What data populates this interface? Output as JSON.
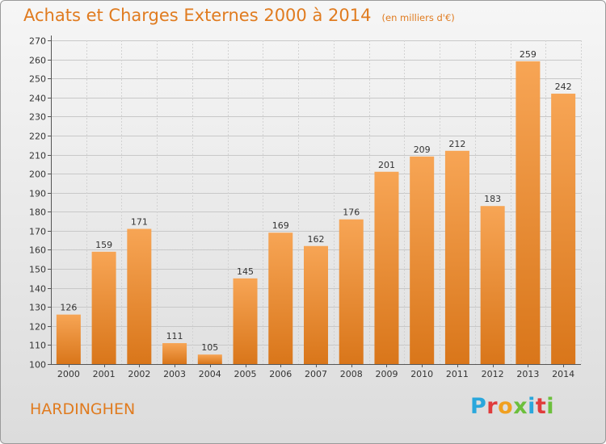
{
  "header": {
    "title": "Achats et Charges Externes 2000 à 2014",
    "subtitle": "(en milliers d'€)"
  },
  "footer": {
    "location": "HARDINGHEN",
    "logo_text": "Proxiti"
  },
  "colors": {
    "accent": "#e07b1f",
    "bar_light": "#f7a555",
    "bar_dark": "#dc7a1a",
    "logo_letters": [
      "#2aa7dc",
      "#e03c3c",
      "#f0a020",
      "#6cbf3c",
      "#2aa7dc",
      "#e03c3c",
      "#6cbf3c"
    ]
  },
  "chart_data": {
    "type": "bar",
    "categories": [
      "2000",
      "2001",
      "2002",
      "2003",
      "2004",
      "2005",
      "2006",
      "2007",
      "2008",
      "2009",
      "2010",
      "2011",
      "2012",
      "2013",
      "2014"
    ],
    "values": [
      126,
      159,
      171,
      111,
      105,
      145,
      169,
      162,
      176,
      201,
      209,
      212,
      183,
      259,
      242
    ],
    "ylim": [
      100,
      270
    ],
    "yticks": [
      100,
      110,
      120,
      130,
      140,
      150,
      160,
      170,
      180,
      190,
      200,
      210,
      220,
      230,
      240,
      250,
      260,
      270
    ],
    "grid": true,
    "data_labels": true
  }
}
